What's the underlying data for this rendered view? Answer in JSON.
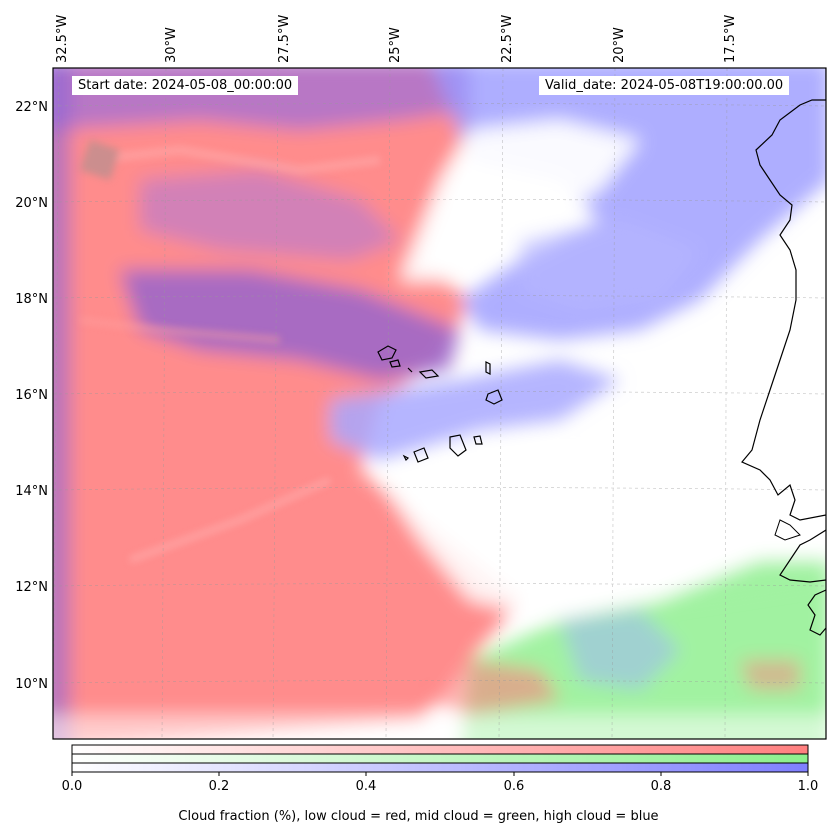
{
  "map": {
    "longitude_labels": [
      "32.5°W",
      "30°W",
      "27.5°W",
      "25°W",
      "22.5°W",
      "20°W",
      "17.5°W"
    ],
    "latitude_labels": [
      "22°N",
      "20°N",
      "18°N",
      "16°N",
      "14°N",
      "12°N",
      "10°N"
    ],
    "start_date": "Start date: 2024-05-08_00:00:00",
    "valid_date": "Valid_date: 2024-05-08T19:00:00.00",
    "colors": {
      "low_cloud": "#ff7f7f",
      "mid_cloud": "#8cf08c",
      "high_cloud": "#7f7fff",
      "overlap_low_high": "#9a62cc"
    }
  },
  "colorbar": {
    "ticks": [
      "0.0",
      "0.2",
      "0.4",
      "0.6",
      "0.8",
      "1.0"
    ],
    "label": "Cloud fraction (%), low cloud = red, mid cloud = green, high cloud = blue",
    "range": [
      0.0,
      1.0
    ]
  }
}
